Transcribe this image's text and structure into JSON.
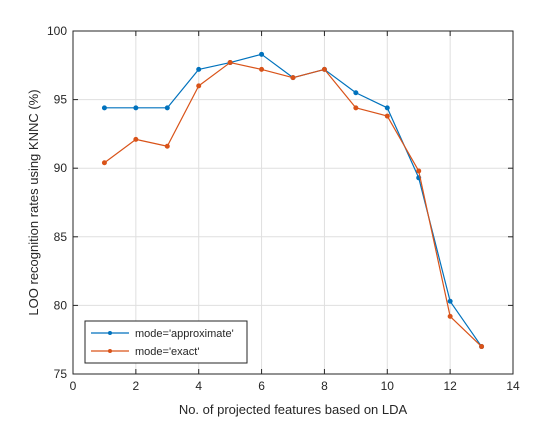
{
  "chart_data": {
    "type": "line",
    "title": "",
    "xlabel": "No. of projected features based on LDA",
    "ylabel": "LOO recognition rates using KNNC (%)",
    "xlim": [
      0,
      14
    ],
    "ylim": [
      75,
      100
    ],
    "x_ticks": [
      0,
      2,
      4,
      6,
      8,
      10,
      12,
      14
    ],
    "y_ticks": [
      75,
      80,
      85,
      90,
      95,
      100
    ],
    "x_tick_labels": [
      "0",
      "2",
      "4",
      "6",
      "8",
      "10",
      "12",
      "14"
    ],
    "y_tick_labels": [
      "75",
      "80",
      "85",
      "90",
      "95",
      "100"
    ],
    "grid": true,
    "legend_position": "bottom-left",
    "x": [
      1,
      2,
      3,
      4,
      5,
      6,
      7,
      8,
      9,
      10,
      11,
      12,
      13
    ],
    "series": [
      {
        "name": "mode='approximate'",
        "color": "#0072BD",
        "values": [
          94.4,
          94.4,
          94.4,
          97.2,
          97.7,
          98.3,
          96.6,
          97.2,
          95.5,
          94.4,
          89.3,
          80.3,
          77.0
        ]
      },
      {
        "name": "mode='exact'",
        "color": "#D95319",
        "values": [
          90.4,
          92.1,
          91.6,
          96.0,
          97.7,
          97.2,
          96.6,
          97.2,
          94.4,
          93.8,
          89.8,
          79.2,
          77.0
        ]
      }
    ]
  }
}
